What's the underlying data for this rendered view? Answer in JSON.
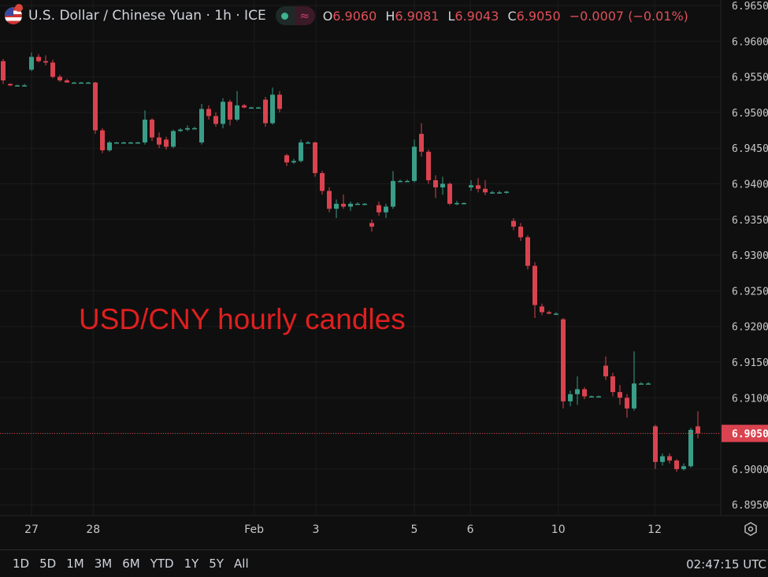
{
  "header": {
    "symbol_title": "U.S. Dollar / Chinese Yuan · 1h · ICE",
    "ohlc": {
      "o_label": "O",
      "o": "6.9060",
      "h_label": "H",
      "h": "6.9081",
      "l_label": "L",
      "l": "6.9043",
      "c_label": "C",
      "c": "6.9050",
      "change": "−0.0007 (−0.01%)"
    },
    "icons": [
      "us-china-flag-icon",
      "market-open-dot-icon",
      "delayed-data-icon"
    ]
  },
  "annotation": "USD/CNY hourly candles",
  "range_buttons": [
    "1D",
    "5D",
    "1M",
    "3M",
    "6M",
    "YTD",
    "1Y",
    "5Y",
    "All"
  ],
  "clock": "02:47:15 UTC",
  "colors": {
    "up": "#3a9d87",
    "down": "#d9434f",
    "background": "#0f0f0f",
    "grid": "#1c1c1c",
    "annotation": "#e01f1f"
  },
  "chart_data": {
    "type": "candlestick",
    "title": "U.S. Dollar / Chinese Yuan · 1h · ICE",
    "ylim": [
      6.8925,
      6.9665
    ],
    "y_ticks": [
      "6.9650",
      "6.9600",
      "6.9550",
      "6.9500",
      "6.9450",
      "6.9400",
      "6.9350",
      "6.9300",
      "6.9250",
      "6.9200",
      "6.9150",
      "6.9100",
      "6.9050",
      "6.9000",
      "6.8950"
    ],
    "current_price": "6.9050",
    "x_ticks": [
      {
        "label": "27",
        "bar": 4
      },
      {
        "label": "28",
        "bar": 12.7
      },
      {
        "label": "Feb",
        "bar": 35.4
      },
      {
        "label": "3",
        "bar": 44.1
      },
      {
        "label": "5",
        "bar": 58
      },
      {
        "label": "6",
        "bar": 65.9
      },
      {
        "label": "10",
        "bar": 78.3
      },
      {
        "label": "12",
        "bar": 91.9
      }
    ],
    "candles_ohlc": [
      [
        6.9572,
        6.9575,
        6.954,
        6.9545
      ],
      [
        6.954,
        6.9541,
        6.9537,
        6.9538
      ],
      [
        6.9538,
        6.9539,
        6.9537,
        6.9538
      ],
      [
        6.9538,
        6.954,
        6.9537,
        6.9538
      ],
      [
        6.956,
        6.9584,
        6.9558,
        6.9578
      ],
      [
        6.9578,
        6.9582,
        6.957,
        6.9572
      ],
      [
        6.9572,
        6.958,
        6.9566,
        6.957
      ],
      [
        6.957,
        6.9574,
        6.9548,
        6.955
      ],
      [
        6.955,
        6.9553,
        6.9543,
        6.9545
      ],
      [
        6.9545,
        6.9547,
        6.9542,
        6.9542
      ],
      [
        6.9542,
        6.9543,
        6.9541,
        6.9542
      ],
      [
        6.9542,
        6.9543,
        6.9541,
        6.9542
      ],
      [
        6.9542,
        6.9543,
        6.9541,
        6.9542
      ],
      [
        6.9542,
        6.9543,
        6.947,
        6.9475
      ],
      [
        6.9475,
        6.9478,
        6.9443,
        6.9447
      ],
      [
        6.9447,
        6.946,
        6.9445,
        6.9458
      ],
      [
        6.9458,
        6.9459,
        6.9457,
        6.9458
      ],
      [
        6.9458,
        6.9459,
        6.9457,
        6.9458
      ],
      [
        6.9458,
        6.9459,
        6.9457,
        6.9458
      ],
      [
        6.9458,
        6.9459,
        6.9457,
        6.9458
      ],
      [
        6.9458,
        6.9503,
        6.9455,
        6.949
      ],
      [
        6.949,
        6.9492,
        6.946,
        6.9465
      ],
      [
        6.9465,
        6.9472,
        6.945,
        6.9455
      ],
      [
        6.9462,
        6.9466,
        6.9448,
        6.9452
      ],
      [
        6.9452,
        6.9476,
        6.945,
        6.9474
      ],
      [
        6.9474,
        6.9478,
        6.9473,
        6.9476
      ],
      [
        6.9476,
        6.9482,
        6.9474,
        6.9478
      ],
      [
        6.9478,
        6.948,
        6.9477,
        6.9478
      ],
      [
        6.9458,
        6.9512,
        6.9455,
        6.9505
      ],
      [
        6.9505,
        6.951,
        6.949,
        6.9495
      ],
      [
        6.9495,
        6.95,
        6.948,
        6.9484
      ],
      [
        6.9484,
        6.952,
        6.9478,
        6.9515
      ],
      [
        6.9515,
        6.9518,
        6.9482,
        6.949
      ],
      [
        6.949,
        6.953,
        6.9488,
        6.951
      ],
      [
        6.951,
        6.9512,
        6.9506,
        6.9507
      ],
      [
        6.9507,
        6.9508,
        6.9506,
        6.9507
      ],
      [
        6.9507,
        6.9508,
        6.9506,
        6.9507
      ],
      [
        6.9518,
        6.9522,
        6.948,
        6.9485
      ],
      [
        6.9485,
        6.9535,
        6.9483,
        6.9525
      ],
      [
        6.9525,
        6.953,
        6.95,
        6.9505
      ],
      [
        6.944,
        6.9442,
        6.9425,
        6.943
      ],
      [
        6.943,
        6.9435,
        6.9428,
        6.9432
      ],
      [
        6.9432,
        6.9462,
        6.943,
        6.9458
      ],
      [
        6.9458,
        6.946,
        6.9457,
        6.9458
      ],
      [
        6.9458,
        6.9459,
        6.941,
        6.9415
      ],
      [
        6.9415,
        6.9418,
        6.9385,
        6.939
      ],
      [
        6.939,
        6.9395,
        6.936,
        6.9365
      ],
      [
        6.9365,
        6.9378,
        6.9352,
        6.9372
      ],
      [
        6.9372,
        6.9385,
        6.9365,
        6.9368
      ],
      [
        6.9368,
        6.9375,
        6.9362,
        6.9372
      ],
      [
        6.9372,
        6.9374,
        6.9371,
        6.9372
      ],
      [
        6.9372,
        6.9373,
        6.937,
        6.9372
      ],
      [
        6.9345,
        6.935,
        6.9333,
        6.934
      ],
      [
        6.937,
        6.9375,
        6.9355,
        6.936
      ],
      [
        6.936,
        6.9372,
        6.9352,
        6.9368
      ],
      [
        6.9368,
        6.9418,
        6.9365,
        6.9404
      ],
      [
        6.9404,
        6.9406,
        6.9403,
        6.9404
      ],
      [
        6.9404,
        6.9406,
        6.9403,
        6.9404
      ],
      [
        6.9404,
        6.9462,
        6.9402,
        6.9452
      ],
      [
        6.947,
        6.9485,
        6.9438,
        6.9445
      ],
      [
        6.9445,
        6.9448,
        6.94,
        6.9405
      ],
      [
        6.9405,
        6.9412,
        6.938,
        6.9395
      ],
      [
        6.9395,
        6.941,
        6.9385,
        6.94
      ],
      [
        6.94,
        6.9402,
        6.937,
        6.9372
      ],
      [
        6.9372,
        6.9376,
        6.937,
        6.9373
      ],
      [
        6.9373,
        6.9374,
        6.9372,
        6.9373
      ],
      [
        6.9395,
        6.9405,
        6.939,
        6.9398
      ],
      [
        6.9398,
        6.9408,
        6.9388,
        6.9393
      ],
      [
        6.9393,
        6.9405,
        6.9384,
        6.9388
      ],
      [
        6.9388,
        6.939,
        6.9386,
        6.9388
      ],
      [
        6.9388,
        6.939,
        6.9386,
        6.9388
      ],
      [
        6.9388,
        6.939,
        6.9386,
        6.9389
      ],
      [
        6.9348,
        6.9352,
        6.9335,
        6.934
      ],
      [
        6.934,
        6.9345,
        6.932,
        6.9325
      ],
      [
        6.9325,
        6.9328,
        6.928,
        6.9285
      ],
      [
        6.9285,
        6.929,
        6.9212,
        6.923
      ],
      [
        6.9228,
        6.9232,
        6.9216,
        6.922
      ],
      [
        6.922,
        6.9222,
        6.9217,
        6.9218
      ],
      [
        6.9218,
        6.922,
        6.9216,
        6.9218
      ],
      [
        6.921,
        6.9212,
        6.9085,
        6.9095
      ],
      [
        6.9095,
        6.911,
        6.9088,
        6.9105
      ],
      [
        6.9105,
        6.913,
        6.909,
        6.9112
      ],
      [
        6.9112,
        6.9115,
        6.9098,
        6.9102
      ],
      [
        6.9102,
        6.9103,
        6.9101,
        6.9102
      ],
      [
        6.9102,
        6.9103,
        6.9101,
        6.9102
      ],
      [
        6.9145,
        6.9158,
        6.9125,
        6.913
      ],
      [
        6.913,
        6.9135,
        6.9102,
        6.9108
      ],
      [
        6.9108,
        6.9118,
        6.909,
        6.91
      ],
      [
        6.91,
        6.9105,
        6.9072,
        6.9085
      ],
      [
        6.9085,
        6.9165,
        6.9082,
        6.912
      ],
      [
        6.912,
        6.9122,
        6.9119,
        6.912
      ],
      [
        6.912,
        6.9122,
        6.9119,
        6.912
      ],
      [
        6.906,
        6.9062,
        6.9,
        6.901
      ],
      [
        6.901,
        6.9022,
        6.9005,
        6.9018
      ],
      [
        6.9018,
        6.9022,
        6.9008,
        6.9012
      ],
      [
        6.9012,
        6.9014,
        6.8996,
        6.9
      ],
      [
        6.9,
        6.9008,
        6.8998,
        6.9004
      ],
      [
        6.9004,
        6.9058,
        6.9002,
        6.9055
      ],
      [
        6.906,
        6.9081,
        6.9043,
        6.905
      ]
    ]
  }
}
